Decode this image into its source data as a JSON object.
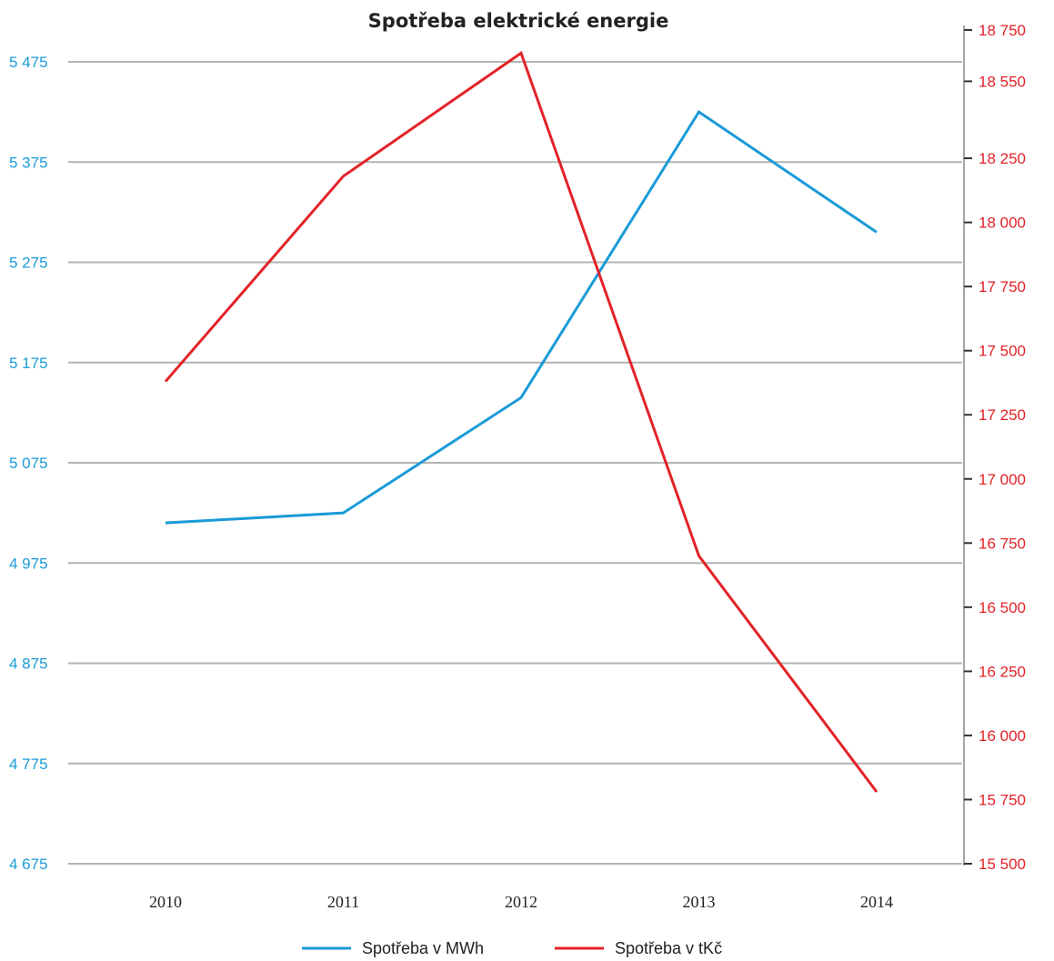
{
  "chart_data": {
    "type": "line",
    "title": "Spotřeba elektrické energie",
    "categories": [
      "2010",
      "2011",
      "2012",
      "2013",
      "2014"
    ],
    "y_left": {
      "ticks": [
        4675,
        4775,
        4875,
        4975,
        5075,
        5175,
        5275,
        5375,
        5475
      ],
      "tick_labels": [
        "4 675",
        "4 775",
        "4 875",
        "4 975",
        "5 075",
        "5 175",
        "5 275",
        "5 375",
        "5 475"
      ],
      "ylim": [
        4675,
        5475
      ],
      "color": "#1a9bd7"
    },
    "y_right": {
      "ticks": [
        15500,
        15750,
        16000,
        16250,
        16500,
        16750,
        17000,
        17250,
        17500,
        17750,
        18000,
        18250,
        18550,
        18750
      ],
      "tick_labels": [
        "15 500",
        "15 750",
        "16 000",
        "16 250",
        "16 500",
        "16 750",
        "17 000",
        "17 250",
        "17 500",
        "17 750",
        "18 000",
        "18 250",
        "18 550",
        "18 750"
      ],
      "ylim": [
        15500,
        18750
      ],
      "color": "#e32228"
    },
    "series": [
      {
        "name": "Spotřeba v MWh",
        "axis": "left",
        "color": "#1a9bd7",
        "values": [
          5015,
          5025,
          5140,
          5425,
          5305
        ]
      },
      {
        "name": "Spotřeba v tKč",
        "axis": "right",
        "color": "#e32228",
        "values": [
          17380,
          18180,
          18660,
          16700,
          15780
        ]
      }
    ],
    "grid": true,
    "legend_position": "bottom"
  }
}
